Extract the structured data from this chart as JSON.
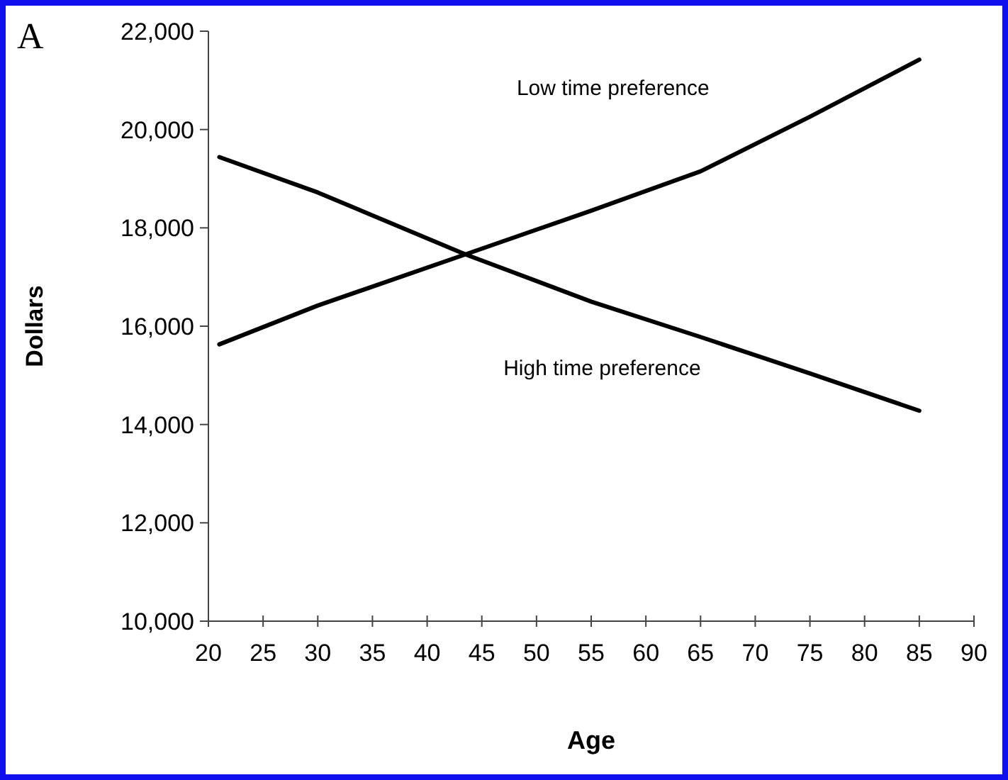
{
  "chart_data": {
    "type": "line",
    "xlabel": "Age",
    "ylabel": "Dollars",
    "xlim": [
      20,
      90
    ],
    "xticks": [
      20,
      25,
      30,
      35,
      40,
      45,
      50,
      55,
      60,
      65,
      70,
      75,
      80,
      85,
      90
    ],
    "ylim": [
      10000,
      22000
    ],
    "yticks": [
      {
        "value": 10000,
        "label": "10,000"
      },
      {
        "value": 12000,
        "label": "12,000"
      },
      {
        "value": 14000,
        "label": "14,000"
      },
      {
        "value": 16000,
        "label": "16,000"
      },
      {
        "value": 18000,
        "label": "18,000"
      },
      {
        "value": 20000,
        "label": "20,000"
      },
      {
        "value": 22000,
        "label": "22,000"
      }
    ],
    "grid": false,
    "legend": false,
    "marker": "none",
    "line_style": "solid",
    "series": [
      {
        "name": "Low time preference",
        "color": "#000000",
        "x": [
          21,
          30,
          43.5,
          55,
          65,
          75,
          85
        ],
        "values": [
          15630,
          16420,
          17460,
          18350,
          19150,
          20260,
          21420
        ]
      },
      {
        "name": "High time preference",
        "color": "#000000",
        "x": [
          21,
          30,
          43.5,
          55,
          65,
          75,
          85
        ],
        "values": [
          19440,
          18720,
          17460,
          16500,
          15780,
          15040,
          14280
        ]
      }
    ],
    "annotations": [
      "A"
    ]
  }
}
